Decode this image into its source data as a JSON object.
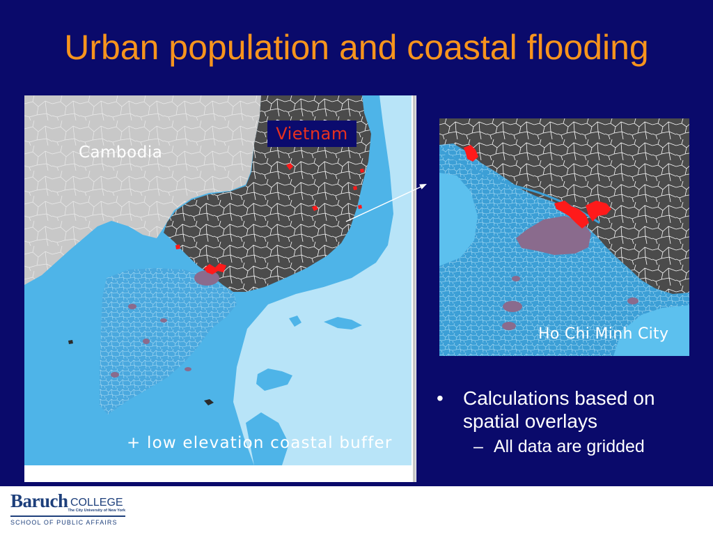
{
  "slide": {
    "title": "Urban population and coastal flooding"
  },
  "colors": {
    "background": "#0a0a6b",
    "title": "#f7941d",
    "body_text": "#ffffff",
    "label_box": "#0b0b6e",
    "label_vietnam": "#e8311f",
    "ocean": "#b8e4f8",
    "coastal_zone": "#4eb4e8",
    "delta": "#4aa8de",
    "inset_coastal": "#3c9fd6",
    "inset_sea": "#5cc0ee",
    "land_vietnam": "#4b4b4b",
    "land_cambodia": "#c8c8c8",
    "urban_area": "#ff1a1a",
    "urban_patch": "#8a6b8d",
    "logo_navy": "#1d3f7b",
    "footer_background": "#ffffff"
  },
  "left_map": {
    "label_vietnam": "Vietnam",
    "label_cambodia": "Cambodia",
    "caption": "+ low elevation coastal buffer"
  },
  "right_map": {
    "label": "Ho Chi Minh City"
  },
  "bullets": [
    {
      "marker": "•",
      "text": "Calculations based on spatial overlays",
      "sub": [
        {
          "marker": "–",
          "text": "All data are gridded"
        }
      ]
    }
  ],
  "footer": {
    "logo": {
      "name_bold": "Baruch",
      "name_light": "COLLEGE",
      "affiliation": "The City University of New York",
      "school": "SCHOOL OF PUBLIC AFFAIRS"
    }
  }
}
